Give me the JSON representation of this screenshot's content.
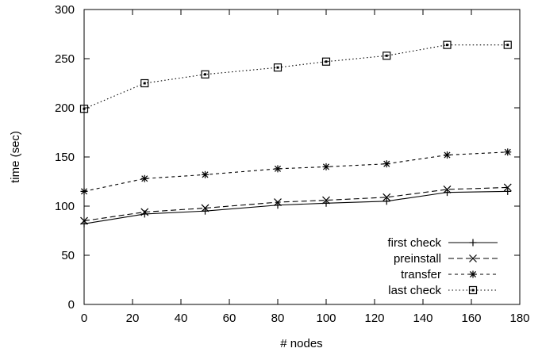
{
  "chart_data": {
    "type": "line",
    "title": "",
    "xlabel": "# nodes",
    "ylabel": "time (sec)",
    "xlim": [
      0,
      180
    ],
    "ylim": [
      0,
      300
    ],
    "xticks": [
      0,
      20,
      40,
      60,
      80,
      100,
      120,
      140,
      160,
      180
    ],
    "yticks": [
      0,
      50,
      100,
      150,
      200,
      250,
      300
    ],
    "grid": false,
    "legend_position": "bottom-right",
    "x": [
      0,
      25,
      50,
      80,
      100,
      125,
      150,
      175
    ],
    "series": [
      {
        "name": "first check",
        "values": [
          82,
          92,
          95,
          101,
          103,
          105,
          114,
          115
        ],
        "marker": "plus",
        "dash": "solid"
      },
      {
        "name": "preinstall",
        "values": [
          85,
          94,
          98,
          104,
          106,
          109,
          117,
          119
        ],
        "marker": "cross",
        "dash": "dashed"
      },
      {
        "name": "transfer",
        "values": [
          115,
          128,
          132,
          138,
          140,
          143,
          152,
          155
        ],
        "marker": "star",
        "dash": "short-dashed"
      },
      {
        "name": "last check",
        "values": [
          199,
          225,
          234,
          241,
          247,
          253,
          264,
          264
        ],
        "marker": "square",
        "dash": "dotted"
      }
    ]
  }
}
